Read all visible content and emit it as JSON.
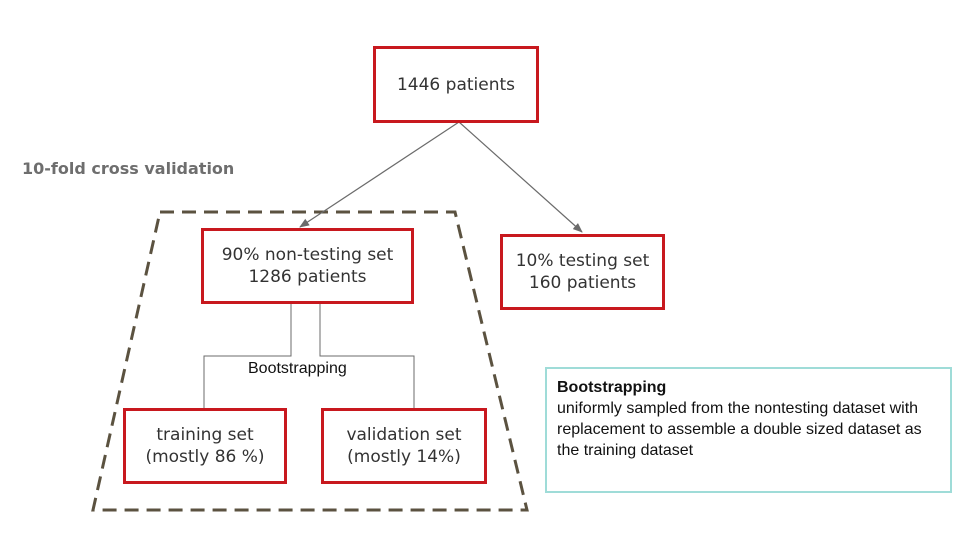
{
  "nodes": {
    "root": {
      "line1": "1446 patients"
    },
    "nontesting": {
      "line1": "90% non-testing set",
      "line2": "1286 patients"
    },
    "testing": {
      "line1": "10% testing set",
      "line2": "160 patients"
    },
    "training": {
      "line1": "training set",
      "line2": "(mostly 86 %)"
    },
    "validation": {
      "line1": "validation set",
      "line2": "(mostly 14%)"
    }
  },
  "labels": {
    "cross_validation": "10-fold cross validation",
    "bootstrapping": "Bootstrapping"
  },
  "note": {
    "title": "Bootstrapping",
    "body": "uniformly sampled from the nontesting dataset with replacement to assemble a double sized dataset as the training dataset"
  },
  "colors": {
    "box_border": "#c8181e",
    "dashed_region": "#5b5240",
    "note_border": "#9fdcd8",
    "connector": "#6b6b6b"
  }
}
